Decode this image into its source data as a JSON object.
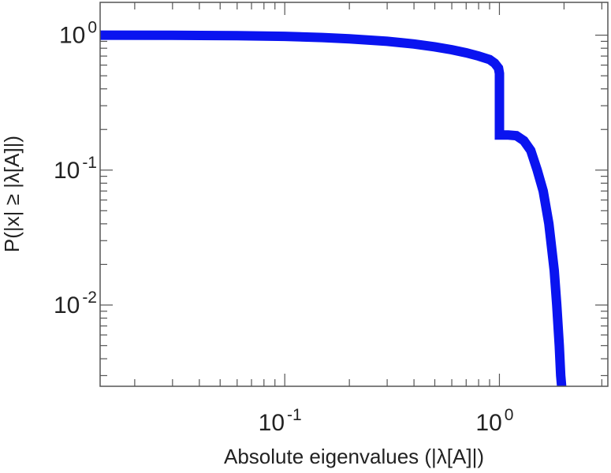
{
  "chart_data": {
    "type": "line",
    "xlabel": "Absolute eigenvalues (|λ[A]|)",
    "ylabel": "P(|x| ≥ |λ[A]|)",
    "xscale": "log",
    "yscale": "log",
    "xlim": [
      0.0138,
      3.2
    ],
    "ylim": [
      0.0025,
      1.75
    ],
    "x_ticks": [
      {
        "value": 0.1,
        "base": "10",
        "exp": "-1"
      },
      {
        "value": 1,
        "base": "10",
        "exp": "0"
      }
    ],
    "y_ticks": [
      {
        "value": 1,
        "base": "10",
        "exp": "0"
      },
      {
        "value": 0.1,
        "base": "10",
        "exp": "-1"
      },
      {
        "value": 0.01,
        "base": "10",
        "exp": "-2"
      }
    ],
    "grid": false,
    "legend": "none",
    "color": "#0a14f0",
    "series": [
      {
        "x": [
          0.0138,
          0.03,
          0.06,
          0.1,
          0.15,
          0.2,
          0.3,
          0.4,
          0.5,
          0.6,
          0.7,
          0.8,
          0.9,
          0.95,
          0.99,
          1.0,
          1.0,
          1.1,
          1.2,
          1.3,
          1.4,
          1.5,
          1.6,
          1.7,
          1.8,
          1.85,
          1.9,
          1.93,
          1.95
        ],
        "y": [
          1.0,
          0.998,
          0.99,
          0.98,
          0.96,
          0.94,
          0.9,
          0.86,
          0.82,
          0.78,
          0.74,
          0.7,
          0.66,
          0.62,
          0.57,
          0.52,
          0.182,
          0.182,
          0.18,
          0.165,
          0.14,
          0.1,
          0.07,
          0.04,
          0.018,
          0.01,
          0.005,
          0.003,
          0.0025
        ]
      }
    ]
  }
}
